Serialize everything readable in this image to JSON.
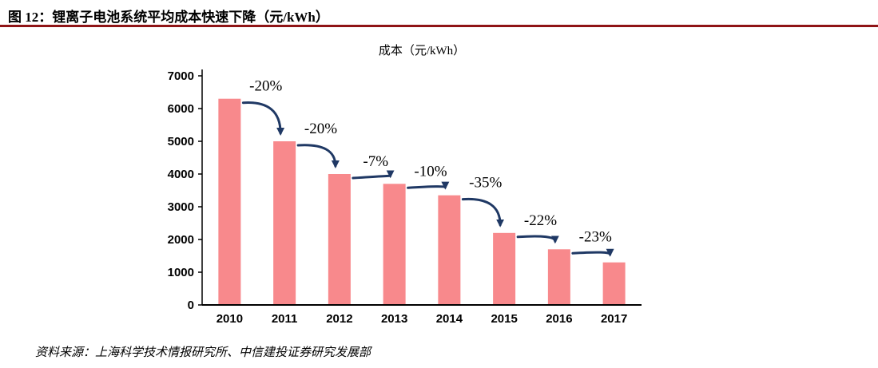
{
  "header": {
    "title": "图 12：锂离子电池系统平均成本快速下降（元/kWh）"
  },
  "footer": {
    "source": "资料来源：上海科学技术情报研究所、中信建投证券研究发展部"
  },
  "colors": {
    "accent_rule": "#8F1416",
    "bar": "#F8898C",
    "arrow": "#1F3864",
    "axis": "#000000"
  },
  "chart_data": {
    "type": "bar",
    "title": "成本（元/kWh）",
    "categories": [
      "2010",
      "2011",
      "2012",
      "2013",
      "2014",
      "2015",
      "2016",
      "2017"
    ],
    "values": [
      6300,
      5000,
      4000,
      3700,
      3350,
      2200,
      1700,
      1300
    ],
    "change_labels": [
      "-20%",
      "-20%",
      "-7%",
      "-10%",
      "-35%",
      "-22%",
      "-23%"
    ],
    "xlabel": "",
    "ylabel": "",
    "ylim": [
      0,
      7000
    ],
    "ytick_step": 1000,
    "yticks": [
      0,
      1000,
      2000,
      3000,
      4000,
      5000,
      6000,
      7000
    ],
    "grid": false,
    "legend": "none"
  }
}
